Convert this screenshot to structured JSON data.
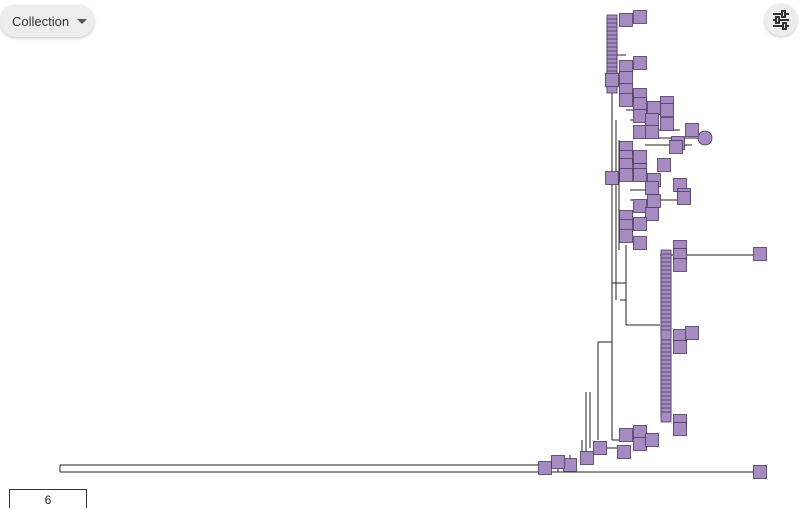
{
  "toolbar": {
    "collection_label": "Collection",
    "collection_icon": "chevron-down-icon",
    "settings_icon": "tune-sliders-icon"
  },
  "scale_bar": {
    "label": "6"
  },
  "colors": {
    "node_fill": "#a58bc2",
    "node_stroke": "#4a3a5c",
    "branch": "#222222"
  }
}
